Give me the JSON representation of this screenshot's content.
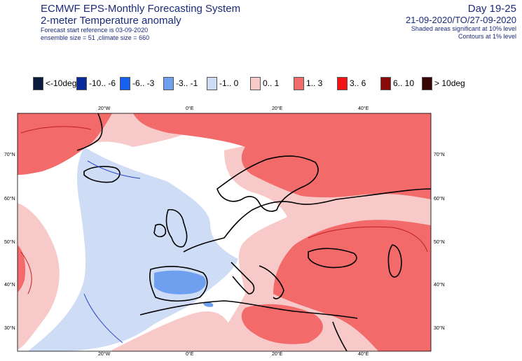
{
  "header": {
    "title": "ECMWF EPS-Monthly Forecasting System",
    "variable": "2-meter Temperature anomaly",
    "forecast_ref": "Forecast start reference is 03-09-2020",
    "ensemble": "ensemble size = 51  ,climate size = 660",
    "day_range": "Day 19-25",
    "date_range": "21-09-2020/TO/27-09-2020",
    "shaded_note": "Shaded areas significant at 10% level",
    "contour_note": "Contours at 1% level"
  },
  "legend": [
    {
      "label": "<-10deg",
      "color": "#0a1a3a"
    },
    {
      "label": "-10.. -6",
      "color": "#0a2a9a"
    },
    {
      "label": "-6.. -3",
      "color": "#1560f0"
    },
    {
      "label": "-3.. -1",
      "color": "#6fa0f0"
    },
    {
      "label": "-1.. 0",
      "color": "#cfdcf6"
    },
    {
      "label": "0.. 1",
      "color": "#f7c9c9"
    },
    {
      "label": "1.. 3",
      "color": "#f26a6a"
    },
    {
      "label": "3.. 6",
      "color": "#f21414"
    },
    {
      "label": "6.. 10",
      "color": "#8a0a0a"
    },
    {
      "label": "> 10deg",
      "color": "#3a0505"
    }
  ],
  "axes": {
    "top_lon": [
      "20°W",
      "0°E",
      "20°E",
      "40°E"
    ],
    "bottom_lon": [
      "20°W",
      "0°E",
      "20°E",
      "40°E"
    ],
    "left_lat": [
      "70°N",
      "60°N",
      "50°N",
      "40°N",
      "30°N"
    ],
    "right_lat": [
      "70°N",
      "60°N",
      "50°N",
      "40°N",
      "30°N"
    ]
  }
}
